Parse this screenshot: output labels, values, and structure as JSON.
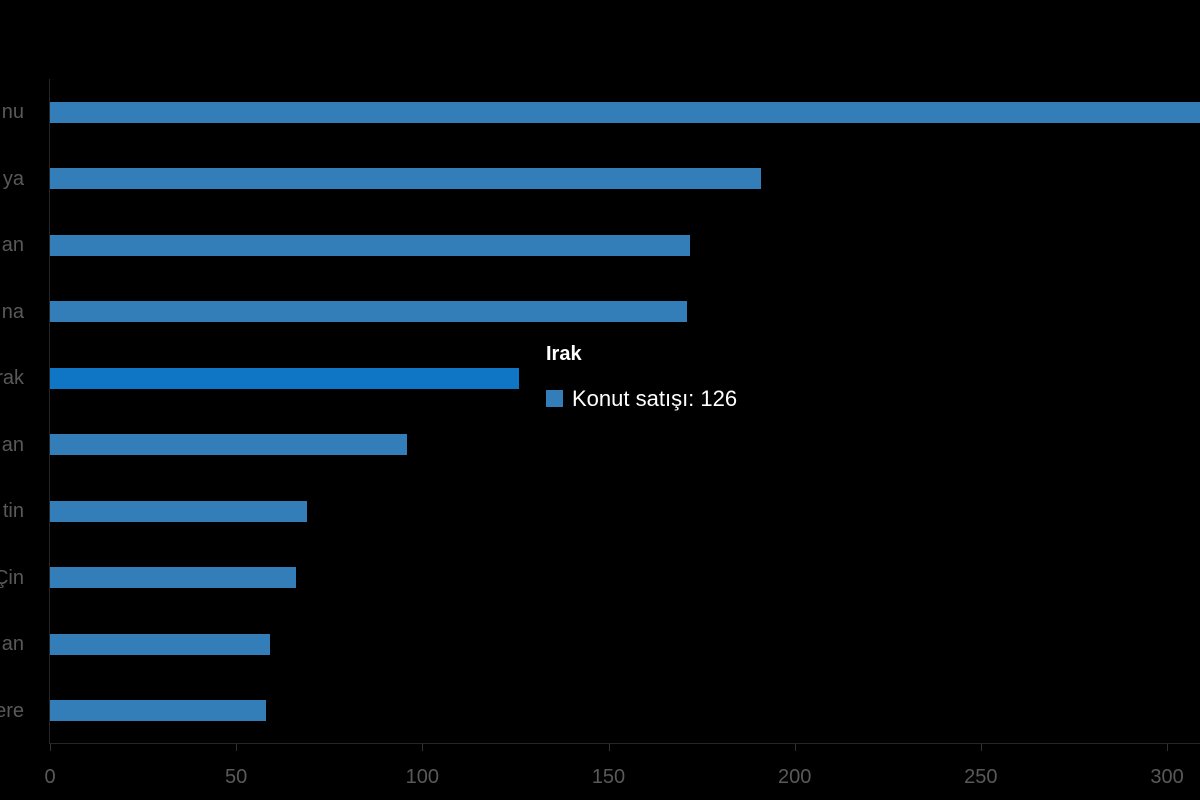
{
  "chart": {
    "background": "#000000",
    "bar_color": "#337DB8",
    "bar_hover_color": "#0F76C6",
    "axis_label_color": "#595959",
    "tooltip": {
      "title": "Irak",
      "series_label": "Konut satışı",
      "value": "126",
      "text": "Konut satışı: 126",
      "marker_color": "#337DB8"
    }
  },
  "chart_data": {
    "type": "bar",
    "orientation": "horizontal",
    "title": "",
    "xlabel": "",
    "ylabel": "",
    "series_name": "Konut satışı",
    "categories_visible_truncated": [
      "nu",
      "ya",
      "an",
      "na",
      "rak",
      "an",
      "tin",
      "Çin",
      "an",
      "ere"
    ],
    "values": [
      310,
      191,
      172,
      171,
      126,
      96,
      69,
      66,
      59,
      58
    ],
    "highlighted_index": 4,
    "highlighted_category": "Irak",
    "highlighted_value": 126,
    "first_bar_clipped_at_right_edge": true,
    "x_ticks": [
      "0",
      "50",
      "100",
      "150",
      "200",
      "250",
      "300"
    ],
    "xlim": [
      0,
      309
    ],
    "grid": false,
    "legend": false
  }
}
